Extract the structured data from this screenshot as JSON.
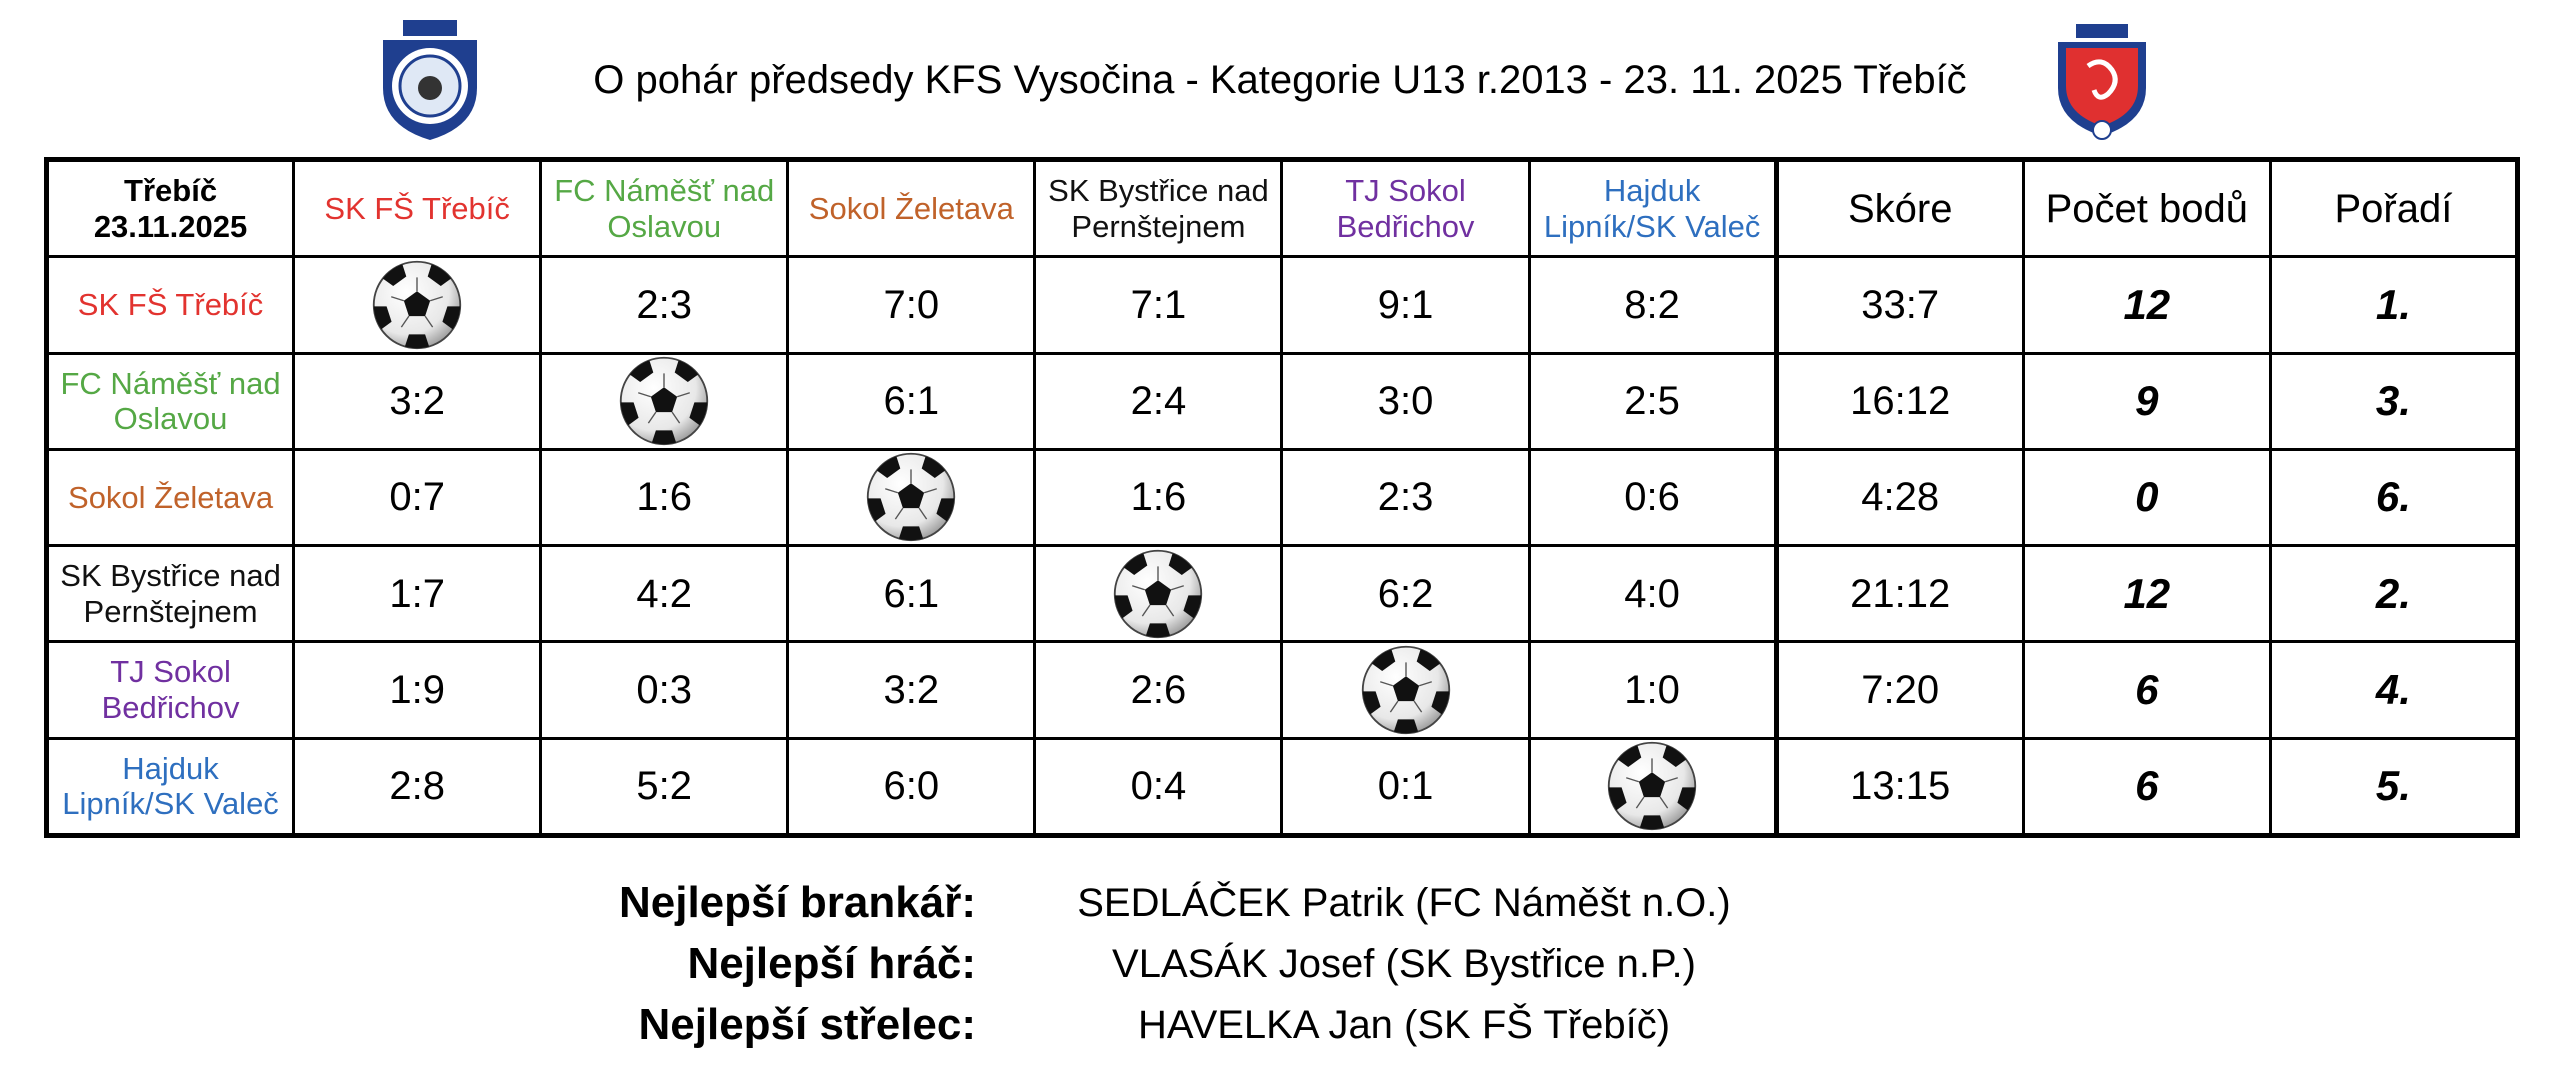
{
  "header": {
    "title": "O pohár předsedy KFS Vysočina - Kategorie U13 r.2013 - 23. 11. 2025 Třebíč"
  },
  "table": {
    "corner": [
      "Třebíč",
      "23.11.2025"
    ],
    "teams": [
      {
        "name": "SK FŠ Třebíč",
        "color": "#e2332f"
      },
      {
        "name": "FC Náměšť nad Oslavou",
        "color": "#55a845"
      },
      {
        "name": "Sokol Želetava",
        "color": "#c0622a"
      },
      {
        "name": "SK Bystřice nad Pernštejnem",
        "color": "#111111"
      },
      {
        "name": "TJ Sokol Bedřichov",
        "color": "#7030a0"
      },
      {
        "name": "Hajduk Lipník/SK Valeč",
        "color": "#2e6fbf"
      }
    ],
    "summary_headers": [
      "Skóre",
      "Počet bodů",
      "Pořadí"
    ],
    "rows": [
      {
        "results": [
          null,
          "2:3",
          "7:0",
          "7:1",
          "9:1",
          "8:2"
        ],
        "score": "33:7",
        "points": 12,
        "rank": "1."
      },
      {
        "results": [
          "3:2",
          null,
          "6:1",
          "2:4",
          "3:0",
          "2:5"
        ],
        "score": "16:12",
        "points": 9,
        "rank": "3."
      },
      {
        "results": [
          "0:7",
          "1:6",
          null,
          "1:6",
          "2:3",
          "0:6"
        ],
        "score": "4:28",
        "points": 0,
        "rank": "6."
      },
      {
        "results": [
          "1:7",
          "4:2",
          "6:1",
          null,
          "6:2",
          "4:0"
        ],
        "score": "21:12",
        "points": 12,
        "rank": "2."
      },
      {
        "results": [
          "1:9",
          "0:3",
          "3:2",
          "2:6",
          null,
          "1:0"
        ],
        "score": "7:20",
        "points": 6,
        "rank": "4."
      },
      {
        "results": [
          "2:8",
          "5:2",
          "6:0",
          "0:4",
          "0:1",
          null
        ],
        "score": "13:15",
        "points": 6,
        "rank": "5."
      }
    ]
  },
  "awards": [
    {
      "label": "Nejlepší brankář:",
      "value": "SEDLÁČEK Patrik (FC Náměšt n.O.)"
    },
    {
      "label": "Nejlepší hráč:",
      "value": "VLASÁK Josef (SK Bystřice n.P.)"
    },
    {
      "label": "Nejlepší střelec:",
      "value": "HAVELKA Jan (SK FŠ Třebíč)"
    }
  ]
}
